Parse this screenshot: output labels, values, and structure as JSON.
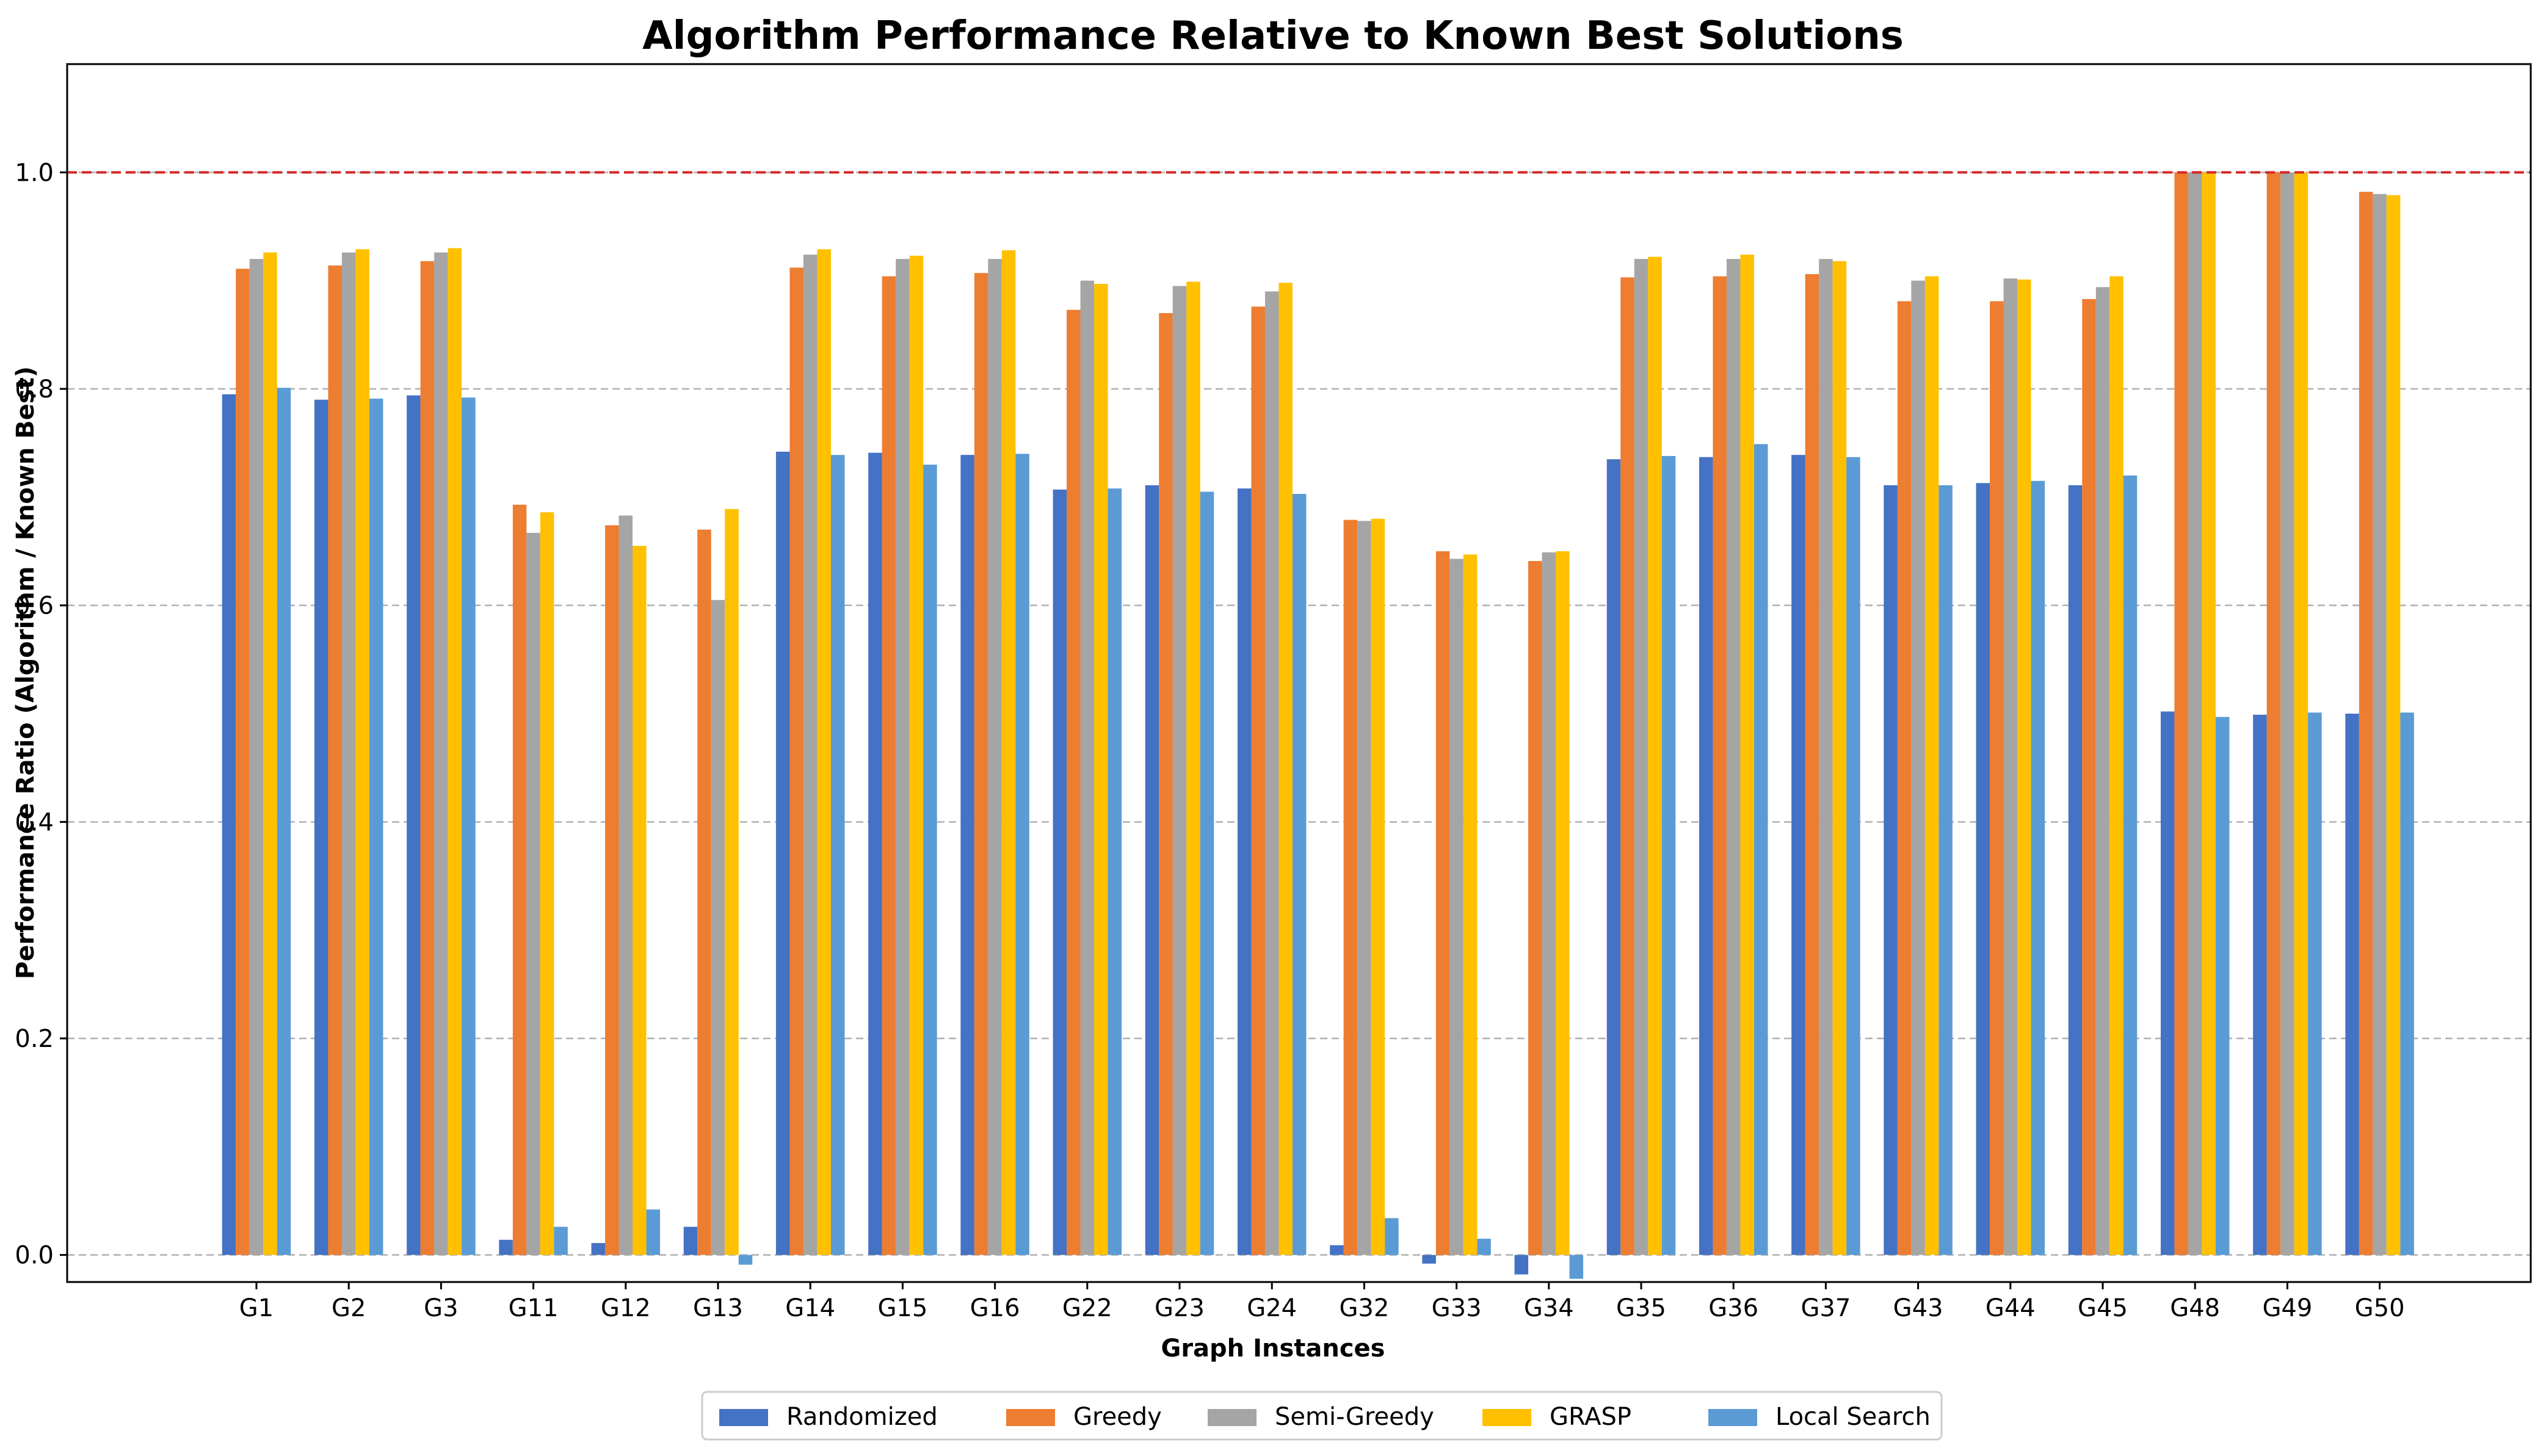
{
  "chart_data": {
    "type": "bar",
    "title": "Algorithm Performance Relative to Known Best Solutions",
    "xlabel": "Graph Instances",
    "ylabel": "Performance Ratio (Algorithm / Known Best)",
    "ylim": [
      -0.025,
      1.1
    ],
    "yticks": [
      "0.0",
      "0.2",
      "0.4",
      "0.6",
      "0.8",
      "1.0"
    ],
    "grid": "y dashed",
    "legend_position": "bottom-center",
    "reference_line": {
      "y": 1.0,
      "color": "#d62728",
      "style": "dashed"
    },
    "categories": [
      "G1",
      "G2",
      "G3",
      "G11",
      "G12",
      "G13",
      "G14",
      "G15",
      "G16",
      "G22",
      "G23",
      "G24",
      "G32",
      "G33",
      "G34",
      "G35",
      "G36",
      "G37",
      "G43",
      "G44",
      "G45",
      "G48",
      "G49",
      "G50"
    ],
    "series": [
      {
        "name": "Randomized",
        "color": "#4472C4",
        "values": [
          0.795,
          0.79,
          0.794,
          0.014,
          0.011,
          0.026,
          0.742,
          0.741,
          0.739,
          0.707,
          0.711,
          0.708,
          0.009,
          -0.008,
          -0.018,
          0.735,
          0.737,
          0.739,
          0.711,
          0.713,
          0.711,
          0.502,
          0.499,
          0.5
        ]
      },
      {
        "name": "Greedy",
        "color": "#ED7D31",
        "values": [
          0.911,
          0.914,
          0.918,
          0.693,
          0.674,
          0.67,
          0.912,
          0.904,
          0.907,
          0.873,
          0.87,
          0.876,
          0.679,
          0.65,
          0.641,
          0.903,
          0.904,
          0.906,
          0.881,
          0.881,
          0.883,
          1.0,
          1.0,
          0.982
        ]
      },
      {
        "name": "Semi-Greedy",
        "color": "#A5A5A5",
        "values": [
          0.92,
          0.926,
          0.926,
          0.667,
          0.683,
          0.605,
          0.924,
          0.92,
          0.92,
          0.9,
          0.895,
          0.89,
          0.678,
          0.643,
          0.649,
          0.92,
          0.92,
          0.92,
          0.9,
          0.902,
          0.894,
          1.0,
          1.0,
          0.98
        ]
      },
      {
        "name": "GRASP",
        "color": "#FFC000",
        "values": [
          0.926,
          0.929,
          0.93,
          0.686,
          0.655,
          0.689,
          0.929,
          0.923,
          0.928,
          0.897,
          0.899,
          0.898,
          0.68,
          0.647,
          0.65,
          0.922,
          0.924,
          0.918,
          0.904,
          0.901,
          0.904,
          1.0,
          1.0,
          0.979
        ]
      },
      {
        "name": "Local Search",
        "color": "#5B9BD5",
        "values": [
          0.801,
          0.791,
          0.792,
          0.026,
          0.042,
          -0.009,
          0.739,
          0.73,
          0.74,
          0.708,
          0.705,
          0.703,
          0.034,
          0.015,
          -0.022,
          0.738,
          0.749,
          0.737,
          0.711,
          0.715,
          0.72,
          0.497,
          0.501,
          0.501
        ]
      }
    ]
  }
}
